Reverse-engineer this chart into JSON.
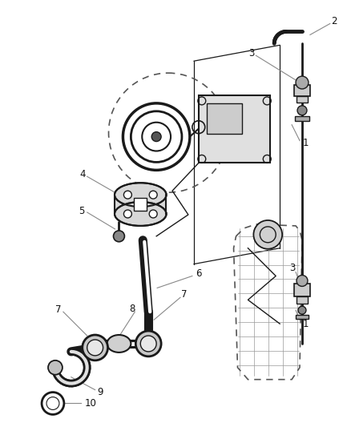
{
  "bg_color": "#ffffff",
  "fig_width": 4.39,
  "fig_height": 5.33,
  "dpi": 100,
  "line_color": "#1a1a1a",
  "dashed_color": "#555555",
  "leader_color": "#888888"
}
